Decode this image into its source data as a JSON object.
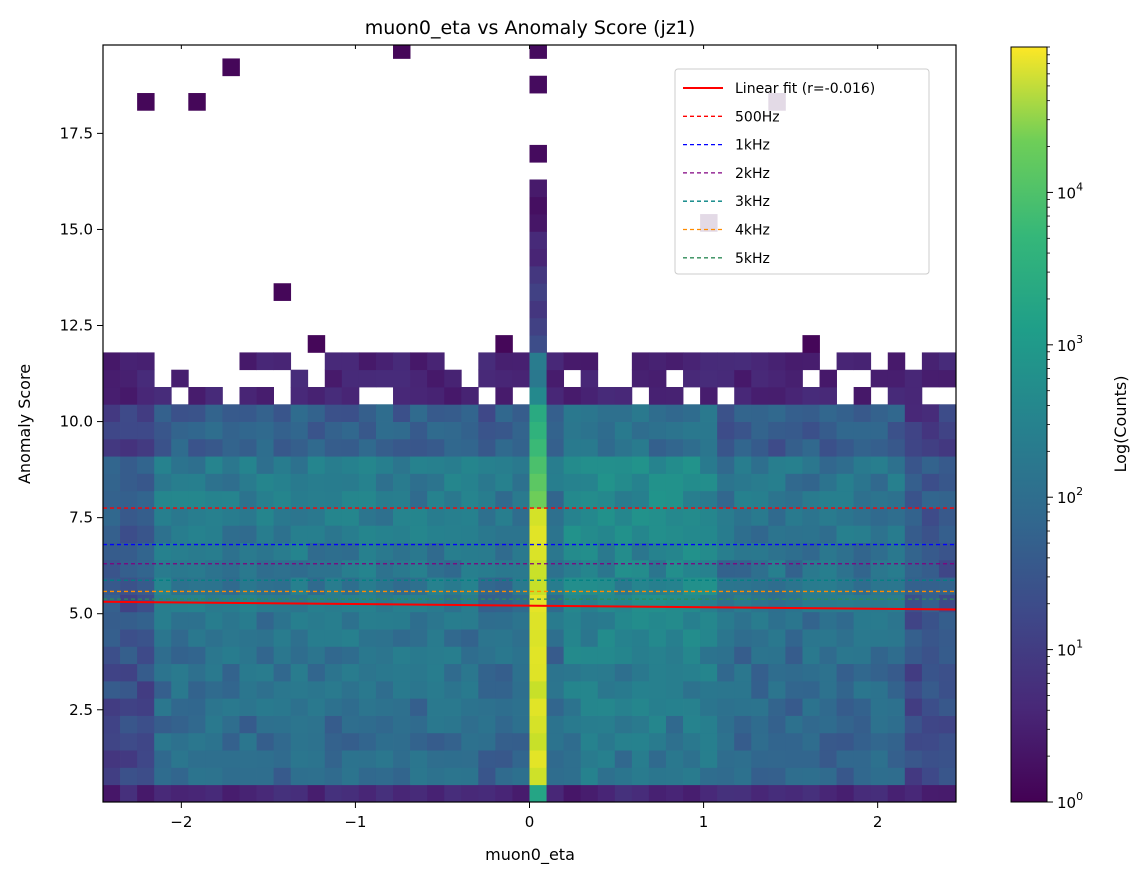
{
  "chart_data": {
    "type": "heatmap",
    "title": "muon0_eta vs Anomaly Score (jz1)",
    "xlabel": "muon0_eta",
    "ylabel": "Anomaly Score",
    "xlim": [
      -2.45,
      2.45
    ],
    "ylim": [
      0.1,
      19.8
    ],
    "x_ticks": [
      -2,
      -1,
      0,
      1,
      2
    ],
    "x_tick_labels": [
      "−2",
      "−1",
      "0",
      "1",
      "2"
    ],
    "y_ticks": [
      2.5,
      5.0,
      7.5,
      10.0,
      12.5,
      15.0,
      17.5
    ],
    "y_tick_labels": [
      "2.5",
      "5.0",
      "7.5",
      "10.0",
      "12.5",
      "15.0",
      "17.5"
    ],
    "colorbar": {
      "label": "Log(Counts)",
      "scale": "log",
      "range": [
        1,
        90000
      ],
      "colormap": "viridis",
      "ticks": [
        {
          "value": 1,
          "base": "10",
          "exp": "0"
        },
        {
          "value": 10,
          "base": "10",
          "exp": "1"
        },
        {
          "value": 100,
          "base": "10",
          "exp": "2"
        },
        {
          "value": 1000,
          "base": "10",
          "exp": "3"
        },
        {
          "value": 10000,
          "base": "10",
          "exp": "4"
        }
      ]
    },
    "bins": {
      "x_count": 50,
      "y_count": 44,
      "y_edges_step": 0.45
    },
    "series": [
      {
        "name": "Linear fit (r=-0.016)",
        "kind": "fit",
        "color": "#ff0000",
        "x": [
          -2.45,
          2.45
        ],
        "y": [
          5.31,
          5.11
        ]
      },
      {
        "name": "500Hz",
        "kind": "threshold",
        "color": "#ff0000",
        "y": 7.75
      },
      {
        "name": "1kHz",
        "kind": "threshold",
        "color": "#0000ff",
        "y": 6.8
      },
      {
        "name": "2kHz",
        "kind": "threshold",
        "color": "#800080",
        "y": 6.3
      },
      {
        "name": "3kHz",
        "kind": "threshold",
        "color": "#008080",
        "y": 5.87
      },
      {
        "name": "4kHz",
        "kind": "threshold",
        "color": "#ff8c00",
        "y": 5.58
      },
      {
        "name": "5kHz",
        "kind": "threshold",
        "color": "#2e8b57",
        "y": 5.38
      }
    ],
    "legend_position": "top-right",
    "grid": false
  }
}
